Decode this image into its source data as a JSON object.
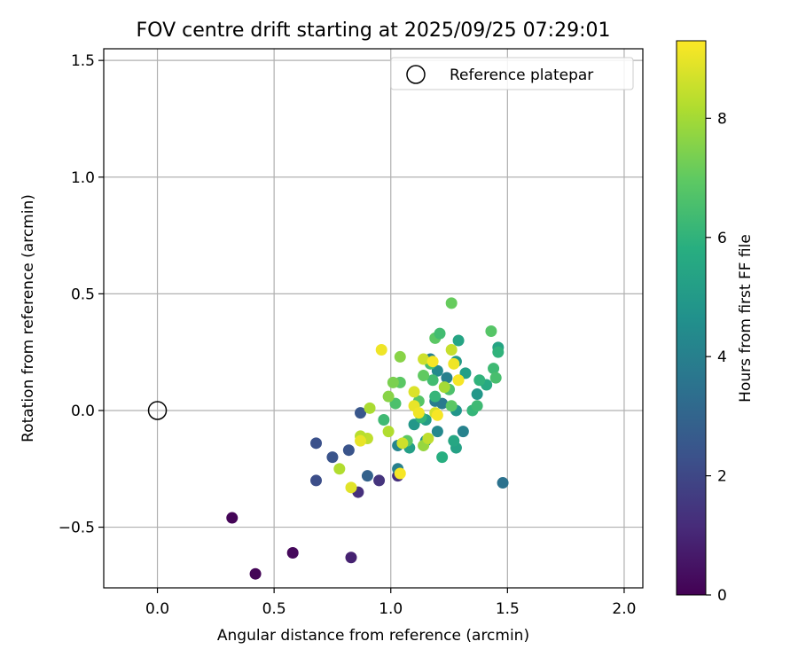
{
  "chart_data": {
    "type": "scatter",
    "title": "FOV centre drift starting at 2025/09/25 07:29:01",
    "xlabel": "Angular distance from reference (arcmin)",
    "ylabel": "Rotation from reference (arcmin)",
    "xlim": [
      -0.23,
      2.08
    ],
    "ylim": [
      -0.76,
      1.55
    ],
    "xticks": [
      0.0,
      0.5,
      1.0,
      1.5,
      2.0
    ],
    "xtick_labels": [
      "0.0",
      "0.5",
      "1.0",
      "1.5",
      "2.0"
    ],
    "yticks": [
      -0.5,
      0.0,
      0.5,
      1.0,
      1.5
    ],
    "ytick_labels": [
      "−0.5",
      "0.0",
      "0.5",
      "1.0",
      "1.5"
    ],
    "grid": true,
    "legend": {
      "position": "top-right",
      "label": "Reference platepar"
    },
    "reference_point": {
      "x": 0.0,
      "y": 0.0
    },
    "colorbar": {
      "label": "Hours from first FF file",
      "colormap": "viridis",
      "range": [
        0,
        9.3
      ],
      "ticks": [
        0,
        2,
        4,
        6,
        8
      ],
      "tick_labels": [
        "0",
        "2",
        "4",
        "6",
        "8"
      ]
    },
    "color_field": "hours",
    "points": [
      {
        "x": 0.32,
        "y": -0.46,
        "hours": 0.1
      },
      {
        "x": 0.42,
        "y": -0.7,
        "hours": 0.1
      },
      {
        "x": 0.58,
        "y": -0.61,
        "hours": 0.2
      },
      {
        "x": 0.83,
        "y": -0.63,
        "hours": 0.9
      },
      {
        "x": 0.86,
        "y": -0.35,
        "hours": 1.3
      },
      {
        "x": 0.95,
        "y": -0.3,
        "hours": 1.4
      },
      {
        "x": 1.03,
        "y": -0.28,
        "hours": 1.3
      },
      {
        "x": 0.68,
        "y": -0.3,
        "hours": 2.2
      },
      {
        "x": 0.68,
        "y": -0.14,
        "hours": 2.3
      },
      {
        "x": 0.75,
        "y": -0.2,
        "hours": 2.4
      },
      {
        "x": 0.82,
        "y": -0.17,
        "hours": 2.4
      },
      {
        "x": 0.87,
        "y": -0.01,
        "hours": 2.5
      },
      {
        "x": 0.9,
        "y": -0.28,
        "hours": 2.9
      },
      {
        "x": 1.48,
        "y": -0.31,
        "hours": 3.5
      },
      {
        "x": 1.03,
        "y": -0.25,
        "hours": 4.0
      },
      {
        "x": 1.03,
        "y": -0.15,
        "hours": 4.2
      },
      {
        "x": 1.31,
        "y": -0.09,
        "hours": 4.1
      },
      {
        "x": 1.2,
        "y": -0.09,
        "hours": 4.3
      },
      {
        "x": 1.15,
        "y": -0.13,
        "hours": 4.6
      },
      {
        "x": 1.28,
        "y": 0.0,
        "hours": 4.8
      },
      {
        "x": 1.19,
        "y": 0.04,
        "hours": 3.9
      },
      {
        "x": 1.24,
        "y": 0.14,
        "hours": 4.0
      },
      {
        "x": 1.2,
        "y": 0.17,
        "hours": 4.4
      },
      {
        "x": 1.17,
        "y": 0.22,
        "hours": 4.0
      },
      {
        "x": 1.22,
        "y": 0.03,
        "hours": 3.8
      },
      {
        "x": 1.1,
        "y": -0.06,
        "hours": 4.9
      },
      {
        "x": 1.15,
        "y": -0.04,
        "hours": 5.1
      },
      {
        "x": 1.08,
        "y": -0.16,
        "hours": 5.2
      },
      {
        "x": 1.28,
        "y": -0.16,
        "hours": 5.3
      },
      {
        "x": 1.27,
        "y": -0.13,
        "hours": 5.5
      },
      {
        "x": 1.22,
        "y": -0.2,
        "hours": 5.8
      },
      {
        "x": 1.32,
        "y": 0.16,
        "hours": 5.2
      },
      {
        "x": 1.28,
        "y": 0.21,
        "hours": 5.0
      },
      {
        "x": 1.29,
        "y": 0.3,
        "hours": 5.4
      },
      {
        "x": 1.37,
        "y": 0.07,
        "hours": 4.9
      },
      {
        "x": 1.41,
        "y": 0.11,
        "hours": 5.6
      },
      {
        "x": 1.46,
        "y": 0.27,
        "hours": 5.4
      },
      {
        "x": 1.46,
        "y": 0.25,
        "hours": 6.0
      },
      {
        "x": 1.35,
        "y": 0.0,
        "hours": 6.1
      },
      {
        "x": 1.37,
        "y": 0.02,
        "hours": 6.3
      },
      {
        "x": 1.38,
        "y": 0.13,
        "hours": 6.0
      },
      {
        "x": 1.44,
        "y": 0.18,
        "hours": 6.3
      },
      {
        "x": 1.45,
        "y": 0.14,
        "hours": 6.5
      },
      {
        "x": 1.43,
        "y": 0.34,
        "hours": 6.8
      },
      {
        "x": 1.26,
        "y": 0.46,
        "hours": 7.1
      },
      {
        "x": 1.19,
        "y": 0.31,
        "hours": 6.9
      },
      {
        "x": 1.21,
        "y": 0.33,
        "hours": 6.4
      },
      {
        "x": 1.17,
        "y": 0.2,
        "hours": 6.5
      },
      {
        "x": 1.25,
        "y": 0.09,
        "hours": 6.6
      },
      {
        "x": 1.19,
        "y": 0.06,
        "hours": 6.1
      },
      {
        "x": 1.13,
        "y": -0.03,
        "hours": 6.1
      },
      {
        "x": 1.26,
        "y": 0.02,
        "hours": 6.9
      },
      {
        "x": 1.18,
        "y": 0.13,
        "hours": 6.4
      },
      {
        "x": 1.14,
        "y": 0.15,
        "hours": 7.0
      },
      {
        "x": 1.12,
        "y": 0.04,
        "hours": 6.8
      },
      {
        "x": 0.97,
        "y": -0.04,
        "hours": 6.3
      },
      {
        "x": 1.02,
        "y": 0.03,
        "hours": 6.6
      },
      {
        "x": 1.04,
        "y": 0.12,
        "hours": 6.9
      },
      {
        "x": 1.01,
        "y": 0.12,
        "hours": 7.4
      },
      {
        "x": 0.99,
        "y": 0.06,
        "hours": 7.6
      },
      {
        "x": 1.04,
        "y": 0.23,
        "hours": 7.6
      },
      {
        "x": 1.07,
        "y": -0.13,
        "hours": 6.9
      },
      {
        "x": 1.14,
        "y": -0.15,
        "hours": 7.8
      },
      {
        "x": 1.16,
        "y": -0.12,
        "hours": 8.4
      },
      {
        "x": 0.99,
        "y": -0.09,
        "hours": 8.2
      },
      {
        "x": 1.05,
        "y": -0.14,
        "hours": 8.6
      },
      {
        "x": 0.91,
        "y": 0.01,
        "hours": 8.1
      },
      {
        "x": 0.9,
        "y": -0.12,
        "hours": 8.4
      },
      {
        "x": 0.87,
        "y": -0.11,
        "hours": 8.3
      },
      {
        "x": 0.87,
        "y": -0.13,
        "hours": 9.0
      },
      {
        "x": 0.78,
        "y": -0.25,
        "hours": 8.2
      },
      {
        "x": 0.83,
        "y": -0.33,
        "hours": 8.9
      },
      {
        "x": 1.04,
        "y": -0.27,
        "hours": 9.2
      },
      {
        "x": 1.1,
        "y": 0.08,
        "hours": 8.8
      },
      {
        "x": 1.1,
        "y": 0.02,
        "hours": 9.0
      },
      {
        "x": 1.12,
        "y": -0.01,
        "hours": 9.1
      },
      {
        "x": 1.19,
        "y": -0.01,
        "hours": 8.7
      },
      {
        "x": 1.2,
        "y": -0.02,
        "hours": 9.2
      },
      {
        "x": 1.23,
        "y": 0.1,
        "hours": 8.0
      },
      {
        "x": 1.26,
        "y": 0.26,
        "hours": 8.5
      },
      {
        "x": 1.27,
        "y": 0.2,
        "hours": 9.1
      },
      {
        "x": 1.29,
        "y": 0.13,
        "hours": 9.2
      },
      {
        "x": 1.14,
        "y": 0.22,
        "hours": 8.6
      },
      {
        "x": 1.18,
        "y": 0.21,
        "hours": 9.2
      },
      {
        "x": 0.96,
        "y": 0.26,
        "hours": 9.1
      }
    ]
  }
}
